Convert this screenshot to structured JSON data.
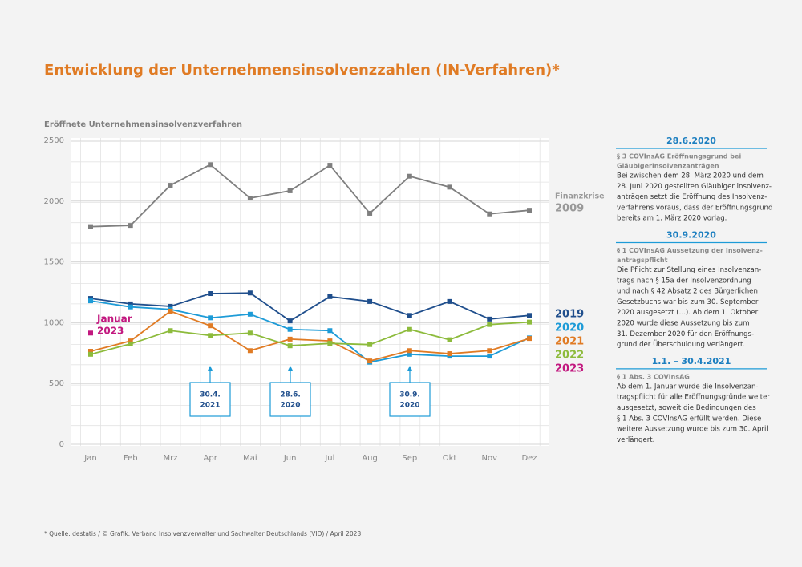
{
  "chart_data": {
    "type": "line",
    "title": "Entwicklung der Unternehmensinsolvenzzahlen (IN-Verfahren)*",
    "y_label": "Eröffnete Unternehmensinsolvenzverfahren",
    "categories": [
      "Jan",
      "Feb",
      "Mrz",
      "Apr",
      "Mai",
      "Jun",
      "Jul",
      "Aug",
      "Sep",
      "Okt",
      "Nov",
      "Dez"
    ],
    "ylim": [
      0,
      2500
    ],
    "yticks": [
      0,
      500,
      1000,
      1500,
      2000,
      2500
    ],
    "grid": true,
    "series": [
      {
        "name": "2009",
        "color": "#7f7f7f",
        "values": [
          1790,
          1800,
          2130,
          2300,
          2025,
          2085,
          2295,
          1900,
          2205,
          2115,
          1895,
          1925
        ]
      },
      {
        "name": "2019",
        "color": "#1f4e8c",
        "values": [
          1200,
          1155,
          1135,
          1240,
          1245,
          1015,
          1215,
          1175,
          1060,
          1175,
          1030,
          1060
        ]
      },
      {
        "name": "2020",
        "color": "#1d9bd7",
        "values": [
          1180,
          1130,
          1110,
          1040,
          1070,
          945,
          935,
          675,
          740,
          725,
          725,
          875
        ]
      },
      {
        "name": "2021",
        "color": "#e07b24",
        "values": [
          765,
          850,
          1095,
          975,
          770,
          865,
          850,
          685,
          770,
          745,
          770,
          870
        ]
      },
      {
        "name": "2022",
        "color": "#8dbb3c",
        "values": [
          740,
          825,
          935,
          895,
          915,
          810,
          830,
          820,
          945,
          860,
          985,
          1005
        ]
      },
      {
        "name": "2023",
        "color": "#c2187f",
        "values": [
          915,
          null,
          null,
          null,
          null,
          null,
          null,
          null,
          null,
          null,
          null,
          null
        ]
      }
    ],
    "series_notes": {
      "2009": "Finanzkrise",
      "2023": "Januar"
    },
    "annotations": [
      [
        "30.4.",
        "2021"
      ],
      [
        "28.6.",
        "2020"
      ],
      [
        "30.9.",
        "2020"
      ]
    ],
    "footnote": "* Quelle: destatis / © Grafik: Verband Insolvenzverwalter und Sachwalter Deutschlands (VID) / April 2023"
  },
  "sidebar": [
    {
      "heading": "28.6.2020",
      "subheading": [
        "§ 3 COVInsAG Eröffnungsgrund bei",
        "Gläubigerinsolvenzanträgen"
      ],
      "body": [
        "Bei zwischen dem 28. März 2020 und dem",
        "28. Juni 2020 gestellten Gläubiger insolvenz-",
        "anträgen setzt die Eröffnung des Insolvenz-",
        "verfahrens voraus, dass der Eröffnungsgrund",
        "bereits am 1. März 2020 vorlag."
      ]
    },
    {
      "heading": "30.9.2020",
      "subheading": [
        "§ 1 COVInsAG Aussetzung der Insolvenz-",
        "antragspflicht"
      ],
      "body": [
        "Die Pflicht zur Stellung eines Insolvenzan-",
        "trags nach § 15a der Insolvenzordnung",
        "und nach § 42 Absatz 2 des Bürgerlichen",
        "Gesetzbuchs war bis zum 30. September",
        "2020 ausgesetzt (...). Ab dem 1. Oktober",
        "2020 wurde diese Aussetzung bis zum",
        "31. Dezember 2020 für den Eröffnungs-",
        "grund der Überschuldung verlängert."
      ]
    },
    {
      "heading": "1.1. – 30.4.2021",
      "subheading": [
        "§ 1 Abs. 3 COVInsAG"
      ],
      "body": [
        "Ab dem 1. Januar wurde die Insolvenzan-",
        "tragspflicht für alle Eröffnungsgründe weiter",
        "ausgesetzt, soweit die Bedingungen des",
        "§ 1 Abs. 3 COVInsAG erfüllt werden. Diese",
        "weitere Aussetzung wurde bis zum 30. April",
        "verlängert."
      ]
    }
  ]
}
